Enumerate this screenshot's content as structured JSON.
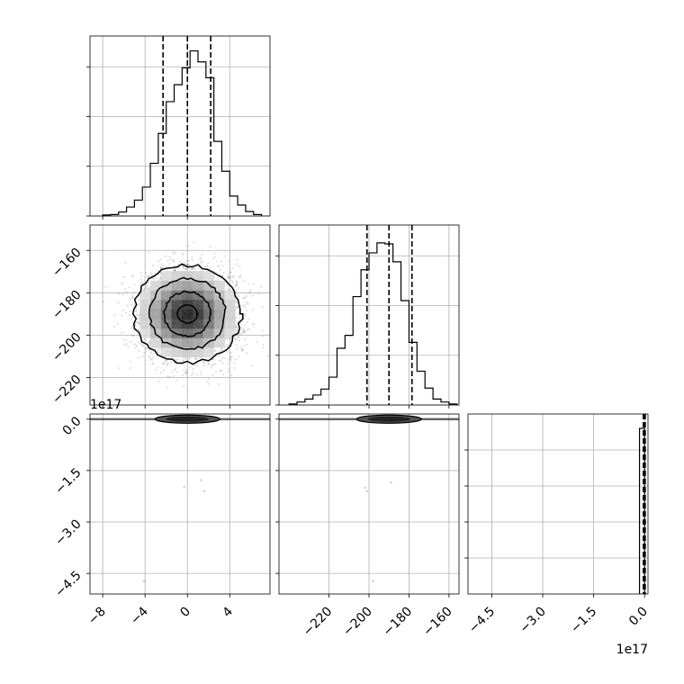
{
  "chart_data": {
    "type": "corner",
    "panels": [
      {
        "id": "hist_x0",
        "type": "histogram",
        "row": 0,
        "col": 0,
        "xlim": [
          -9.2,
          7.8
        ],
        "ylim": [
          0,
          1810
        ],
        "grid": true,
        "show_xtick_labels": false,
        "show_ytick_labels": false,
        "yticks": [
          0,
          500,
          1000,
          1500
        ],
        "bin_edges": [
          -8.0,
          -7.25,
          -6.5,
          -5.75,
          -5.0,
          -4.25,
          -3.5,
          -2.75,
          -2.0,
          -1.25,
          -0.5,
          0.25,
          1.0,
          1.75,
          2.5,
          3.25,
          4.0,
          4.75,
          5.5,
          6.25,
          7.0
        ],
        "counts": [
          10,
          15,
          40,
          90,
          160,
          290,
          530,
          830,
          1150,
          1320,
          1490,
          1660,
          1550,
          1390,
          750,
          450,
          200,
          110,
          45,
          15
        ],
        "quantiles": [
          -2.3,
          0.0,
          2.2
        ]
      },
      {
        "id": "hist2d_x0_x1",
        "type": "hist2d",
        "row": 1,
        "col": 0,
        "xlim": [
          -9.2,
          7.8
        ],
        "ylim": [
          -233,
          -148
        ],
        "yticks": [
          -160,
          -180,
          -200,
          -220
        ],
        "yticklabels": [
          "−160",
          "−180",
          "−200",
          "−220"
        ],
        "grid": true,
        "center": [
          0.0,
          -190.0
        ],
        "sigma": [
          2.3,
          10.5
        ],
        "n_points": 4000,
        "seed": 7
      },
      {
        "id": "hist_x1",
        "type": "histogram",
        "row": 1,
        "col": 1,
        "xlim": [
          -245,
          -155
        ],
        "ylim": [
          0,
          1810
        ],
        "grid": true,
        "show_xtick_labels": false,
        "show_ytick_labels": false,
        "yticks": [
          0,
          500,
          1000,
          1500
        ],
        "bin_edges": [
          -240,
          -236,
          -232,
          -228,
          -224,
          -220,
          -216,
          -212,
          -208,
          -204,
          -200,
          -196,
          -192,
          -188,
          -184,
          -180,
          -176,
          -172,
          -168,
          -164,
          -160,
          -156
        ],
        "counts": [
          10,
          30,
          60,
          100,
          160,
          280,
          570,
          700,
          1090,
          1360,
          1530,
          1630,
          1620,
          1440,
          1050,
          630,
          340,
          170,
          60,
          30,
          10
        ],
        "quantiles": [
          -201,
          -190,
          -178.5
        ]
      },
      {
        "id": "scatter_x0_x2",
        "type": "scatter_band",
        "row": 2,
        "col": 0,
        "xlim": [
          -9.2,
          7.8
        ],
        "ylim": [
          -5.1,
          0.15
        ],
        "yticks": [
          0.0,
          -1.5,
          -3.0,
          -4.5
        ],
        "yticklabels": [
          "0.0",
          "−1.5",
          "−3.0",
          "−4.5"
        ],
        "xticks": [
          -8,
          -4,
          0,
          4
        ],
        "xticklabels": [
          "−8",
          "−4",
          "0",
          "4"
        ],
        "offset_label": "1e17",
        "grid": true,
        "band_center": 0.0,
        "band_y": 0.0,
        "outliers": [
          [
            -0.3,
            -1.98
          ],
          [
            1.6,
            -2.1
          ],
          [
            1.3,
            -1.78
          ],
          [
            -4.1,
            -4.72
          ]
        ]
      },
      {
        "id": "scatter_x1_x2",
        "type": "scatter_band",
        "row": 2,
        "col": 1,
        "xlim": [
          -245,
          -155
        ],
        "ylim": [
          -5.1,
          0.15
        ],
        "yticks": [
          0.0,
          -1.5,
          -3.0,
          -4.5
        ],
        "xticks": [
          -220,
          -200,
          -180,
          -160
        ],
        "xticklabels": [
          "−220",
          "−200",
          "−180",
          "−160"
        ],
        "grid": true,
        "band_center": -190,
        "band_y": 0.0,
        "outliers": [
          [
            -202,
            -2.0
          ],
          [
            -201,
            -2.1
          ],
          [
            -189,
            -1.85
          ],
          [
            -198,
            -4.72
          ]
        ]
      },
      {
        "id": "hist_x2",
        "type": "histogram_spike",
        "row": 2,
        "col": 2,
        "xlim": [
          -5.2,
          0.1
        ],
        "ylim": [
          0,
          1
        ],
        "grid": true,
        "show_ytick_labels": false,
        "yticks": [
          0.2,
          0.4,
          0.6,
          0.8
        ],
        "xticks": [
          -4.5,
          -3.0,
          -1.5,
          0.0
        ],
        "xticklabels": [
          "−4.5",
          "−3.0",
          "−1.5",
          "0.0"
        ],
        "offset_label": "1e17",
        "spike_left": -0.15,
        "spike_right": 0.0,
        "spike_height": 0.92,
        "quantiles": [
          -0.04,
          0.0,
          0.02
        ]
      }
    ]
  }
}
